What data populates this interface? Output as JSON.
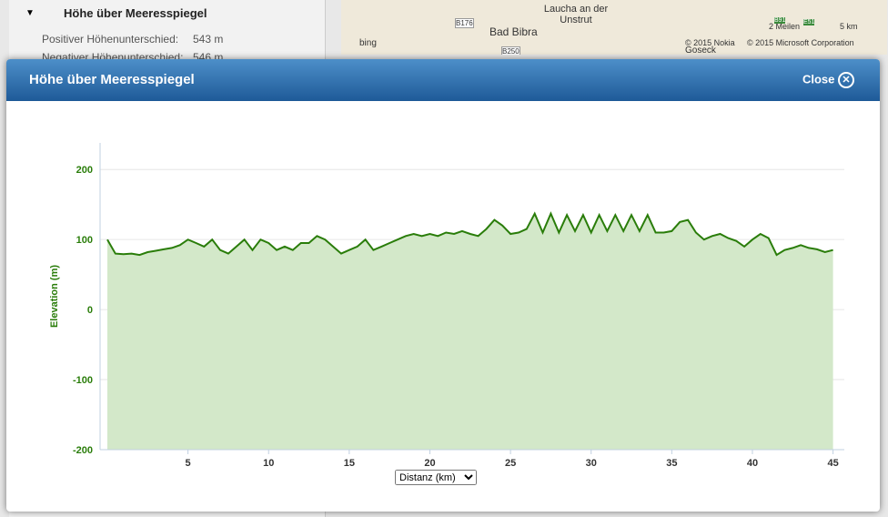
{
  "sidebar": {
    "title": "Höhe über Meeresspiegel",
    "rows": [
      [
        "Positiver Höhenunterschied:",
        "543 m"
      ],
      [
        "Negativer Höhenunterschied:",
        "546 m"
      ]
    ]
  },
  "map": {
    "labels": [
      "Laucha an der Unstrut",
      "Bad Bibra",
      "B176",
      "B250",
      "bing",
      "© 2015 Nokia",
      "© 2015 Microsoft Corporation",
      "2 Meilen",
      "5 km",
      "Goseck",
      "B91",
      "E51"
    ]
  },
  "modal": {
    "title": "Höhe über Meeresspiegel",
    "close": "Close"
  },
  "chart_data": {
    "type": "area",
    "y_label": "Elevation (m)",
    "x_label": "Distanz (km)",
    "color": "#2a7d0a",
    "fill": "#d3e8c9",
    "grid": true,
    "x": [
      0,
      0.5,
      1,
      1.5,
      2,
      2.5,
      3,
      3.5,
      4,
      4.5,
      5,
      5.5,
      6,
      6.5,
      7,
      7.5,
      8,
      8.5,
      9,
      9.5,
      10,
      10.5,
      11,
      11.5,
      12,
      12.5,
      13,
      13.5,
      14,
      14.5,
      15,
      15.5,
      16,
      16.5,
      17,
      17.5,
      18,
      18.5,
      19,
      19.5,
      20,
      20.5,
      21,
      21.5,
      22,
      22.5,
      23,
      23.5,
      24,
      24.5,
      25,
      25.5,
      26,
      26.5,
      27,
      27.5,
      28,
      28.5,
      29,
      29.5,
      30,
      30.5,
      31,
      31.5,
      32,
      32.5,
      33,
      33.5,
      34,
      34.5,
      35,
      35.5,
      36,
      36.5,
      37,
      37.5,
      38,
      38.5,
      39,
      39.5,
      40,
      40.5,
      41,
      41.5,
      42,
      42.5,
      43,
      43.5,
      44,
      44.5,
      45
    ],
    "values": [
      100,
      80,
      79,
      80,
      78,
      82,
      84,
      86,
      88,
      92,
      100,
      95,
      90,
      100,
      85,
      80,
      90,
      100,
      85,
      100,
      95,
      85,
      90,
      85,
      95,
      95,
      105,
      100,
      90,
      80,
      85,
      90,
      100,
      85,
      90,
      95,
      100,
      105,
      108,
      105,
      108,
      105,
      110,
      108,
      112,
      108,
      105,
      115,
      128,
      120,
      108,
      110,
      115,
      137,
      110,
      137,
      110,
      135,
      112,
      135,
      110,
      135,
      112,
      135,
      112,
      135,
      112,
      135,
      110,
      110,
      112,
      125,
      128,
      110,
      100,
      105,
      108,
      102,
      98,
      90,
      100,
      108,
      102,
      78,
      85,
      88,
      92,
      88,
      86,
      82,
      85
    ],
    "xlim": [
      -0.45,
      45.7
    ],
    "ylim": [
      -200,
      238
    ],
    "xticks": [
      5,
      10,
      15,
      20,
      25,
      30,
      35,
      40,
      45
    ],
    "yticks": [
      -200,
      -100,
      0,
      100,
      200
    ]
  }
}
